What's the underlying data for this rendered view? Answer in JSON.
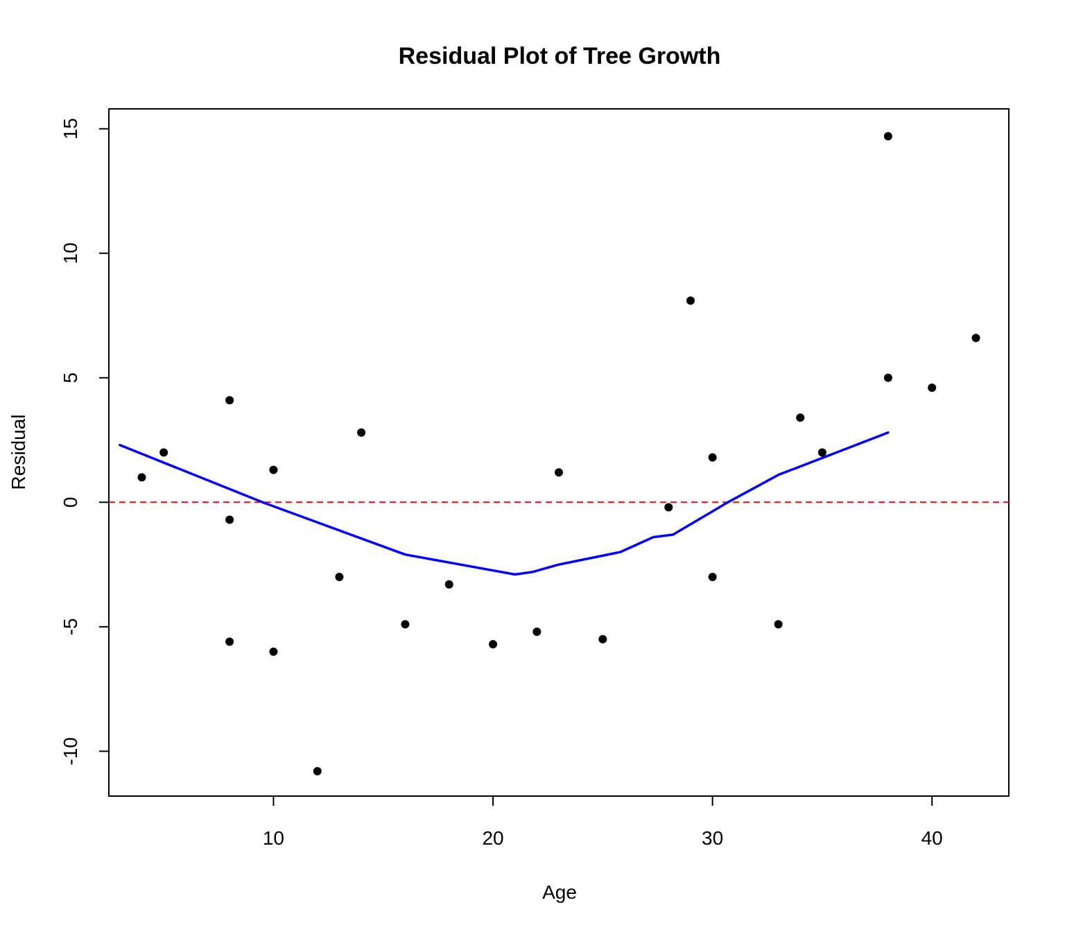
{
  "chart_data": {
    "type": "scatter",
    "title": "Residual Plot of Tree Growth",
    "xlabel": "Age",
    "ylabel": "Residual",
    "xlim": [
      2.5,
      43.5
    ],
    "ylim": [
      -11.8,
      15.8
    ],
    "xticks": [
      10,
      20,
      30,
      40
    ],
    "yticks": [
      -10,
      -5,
      0,
      5,
      10,
      15
    ],
    "xtick_labels": [
      "10",
      "20",
      "30",
      "40"
    ],
    "ytick_labels": [
      "-10",
      "-5",
      "0",
      "5",
      "10",
      "15"
    ],
    "grid": false,
    "legend": "none",
    "series": [
      {
        "kind": "points",
        "color": "#000000",
        "points": [
          {
            "x": 4,
            "y": 1.0
          },
          {
            "x": 5,
            "y": 2.0
          },
          {
            "x": 8,
            "y": 4.1
          },
          {
            "x": 8,
            "y": -0.7
          },
          {
            "x": 8,
            "y": -5.6
          },
          {
            "x": 10,
            "y": 1.3
          },
          {
            "x": 10,
            "y": -6.0
          },
          {
            "x": 12,
            "y": -10.8
          },
          {
            "x": 13,
            "y": -3.0
          },
          {
            "x": 14,
            "y": 2.8
          },
          {
            "x": 16,
            "y": -4.9
          },
          {
            "x": 18,
            "y": -3.3
          },
          {
            "x": 20,
            "y": -5.7
          },
          {
            "x": 22,
            "y": -5.2
          },
          {
            "x": 23,
            "y": 1.2
          },
          {
            "x": 25,
            "y": -5.5
          },
          {
            "x": 28,
            "y": -0.2
          },
          {
            "x": 29,
            "y": 8.1
          },
          {
            "x": 30,
            "y": 1.8
          },
          {
            "x": 30,
            "y": -3.0
          },
          {
            "x": 33,
            "y": -4.9
          },
          {
            "x": 34,
            "y": 3.4
          },
          {
            "x": 35,
            "y": 2.0
          },
          {
            "x": 38,
            "y": 14.7
          },
          {
            "x": 38,
            "y": 5.0
          },
          {
            "x": 40,
            "y": 4.6
          },
          {
            "x": 42,
            "y": 6.6
          }
        ]
      },
      {
        "kind": "smooth-line",
        "color": "#0000ff",
        "points": [
          {
            "x": 3,
            "y": 2.3
          },
          {
            "x": 9.5,
            "y": 0.0
          },
          {
            "x": 16,
            "y": -2.1
          },
          {
            "x": 21,
            "y": -2.9
          },
          {
            "x": 21.8,
            "y": -2.8
          },
          {
            "x": 23,
            "y": -2.5
          },
          {
            "x": 25.8,
            "y": -2.0
          },
          {
            "x": 27.3,
            "y": -1.4
          },
          {
            "x": 28.2,
            "y": -1.3
          },
          {
            "x": 30.7,
            "y": 0.0
          },
          {
            "x": 33,
            "y": 1.1
          },
          {
            "x": 38,
            "y": 2.8
          }
        ]
      },
      {
        "kind": "reference-line",
        "color": "#ff0000",
        "y": 0,
        "style": "dashed"
      }
    ]
  }
}
